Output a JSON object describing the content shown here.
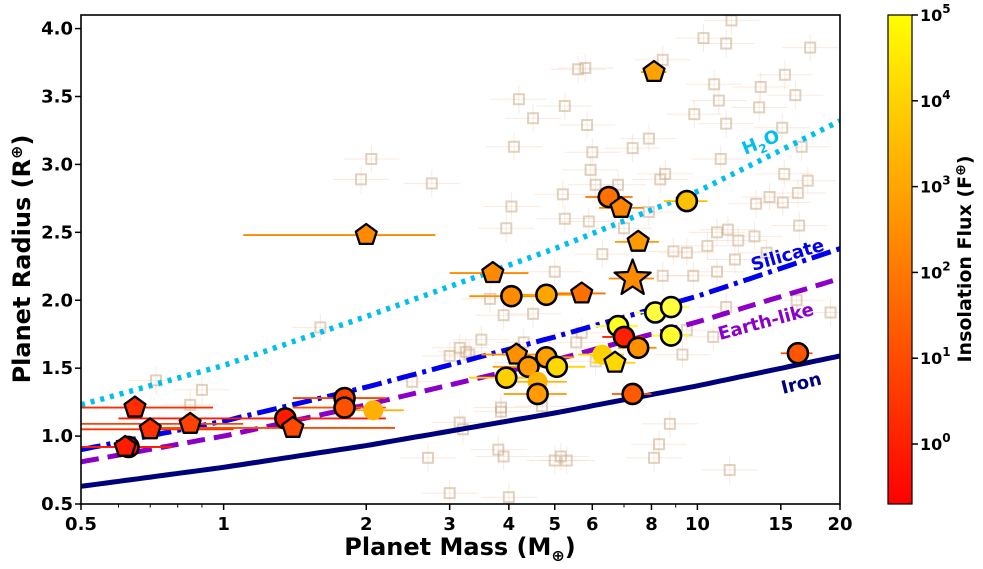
{
  "chart_data": {
    "type": "scatter",
    "xlabel": "Planet Mass (M",
    "xlabel_symbol": "⊕",
    "ylabel": "Planet Radius (R",
    "ylabel_symbol": "⊕",
    "x_scale": "log",
    "xlim": [
      0.5,
      20
    ],
    "ylim": [
      0.5,
      4.1
    ],
    "x_ticks": [
      0.5,
      1,
      2,
      3,
      4,
      5,
      6,
      8,
      10,
      15,
      20
    ],
    "x_tick_labels": [
      "0.5",
      "1",
      "2",
      "3",
      "4",
      "5",
      "6",
      "8",
      "10",
      "15",
      "20"
    ],
    "y_ticks": [
      0.5,
      1.0,
      1.5,
      2.0,
      2.5,
      3.0,
      3.5,
      4.0
    ],
    "y_tick_labels": [
      "0.5",
      "1.0",
      "1.5",
      "2.0",
      "2.5",
      "3.0",
      "3.5",
      "4.0"
    ],
    "grid": false,
    "colorbar": {
      "label": "Insolation Flux (F",
      "label_symbol": "⊕",
      "scale": "log",
      "range": [
        0.2,
        100000
      ],
      "colormap": "autumn (red to yellow)",
      "ticks": [
        {
          "base": "10",
          "exp": "0",
          "value": 1
        },
        {
          "base": "10",
          "exp": "1",
          "value": 10
        },
        {
          "base": "10",
          "exp": "2",
          "value": 100
        },
        {
          "base": "10",
          "exp": "3",
          "value": 1000
        },
        {
          "base": "10",
          "exp": "4",
          "value": 10000
        },
        {
          "base": "10",
          "exp": "5",
          "value": 100000
        }
      ]
    },
    "curves": [
      {
        "name": "H2O",
        "label_main": "H",
        "label_sub": "2",
        "label_end": "O",
        "color": "#00bfef",
        "style": "dotted",
        "points": [
          [
            0.5,
            1.23
          ],
          [
            1,
            1.52
          ],
          [
            2,
            1.88
          ],
          [
            5,
            2.38
          ],
          [
            10,
            2.8
          ],
          [
            20,
            3.32
          ]
        ]
      },
      {
        "name": "Silicate",
        "label": "Silicate",
        "color": "#0000ee",
        "style": "dashdot",
        "points": [
          [
            0.5,
            0.9
          ],
          [
            1,
            1.11
          ],
          [
            2,
            1.36
          ],
          [
            5,
            1.73
          ],
          [
            10,
            2.03
          ],
          [
            20,
            2.38
          ]
        ]
      },
      {
        "name": "Earth-like",
        "label": "Earth-like",
        "color": "#8a00c8",
        "style": "dashed",
        "points": [
          [
            0.5,
            0.81
          ],
          [
            1,
            1.0
          ],
          [
            2,
            1.23
          ],
          [
            5,
            1.56
          ],
          [
            10,
            1.84
          ],
          [
            20,
            2.16
          ]
        ]
      },
      {
        "name": "Iron",
        "label": "Iron",
        "color": "#00007a",
        "style": "solid",
        "points": [
          [
            0.5,
            0.63
          ],
          [
            1,
            0.77
          ],
          [
            2,
            0.93
          ],
          [
            5,
            1.17
          ],
          [
            10,
            1.37
          ],
          [
            20,
            1.59
          ]
        ]
      }
    ],
    "highlight": {
      "marker": "star",
      "x": 7.3,
      "y": 2.16,
      "color": "#ff8c00",
      "xerr": [
        6.5,
        8.1
      ]
    },
    "planets": [
      {
        "marker": "circle",
        "x": 0.63,
        "y": 0.92,
        "color": "#ff1500",
        "xerr": [
          0.5,
          0.75
        ]
      },
      {
        "marker": "pentagon",
        "x": 0.65,
        "y": 1.21,
        "color": "#ff2d00",
        "xerr": [
          0.5,
          0.95
        ]
      },
      {
        "marker": "pentagon",
        "x": 0.7,
        "y": 1.05,
        "color": "#ff3000",
        "xerr": [
          0.5,
          1.05
        ]
      },
      {
        "marker": "pentagon",
        "x": 0.85,
        "y": 1.09,
        "color": "#ff4200",
        "xerr": [
          0.5,
          1.1
        ]
      },
      {
        "marker": "pentagon",
        "x": 0.62,
        "y": 0.92,
        "color": "#ff1a00",
        "xerr": [
          0.5,
          0.78
        ]
      },
      {
        "marker": "circle",
        "x": 1.35,
        "y": 1.13,
        "color": "#ff1a00",
        "xerr": [
          0.6,
          2.2
        ]
      },
      {
        "marker": "pentagon",
        "x": 1.4,
        "y": 1.06,
        "color": "#ff4a00",
        "xerr": [
          0.7,
          2.3
        ]
      },
      {
        "marker": "pentagon",
        "x": 2.0,
        "y": 2.48,
        "color": "#ff8a00",
        "xerr": [
          1.1,
          2.8
        ]
      },
      {
        "marker": "circle",
        "x": 1.8,
        "y": 1.28,
        "color": "#ff4200",
        "xerr": [
          1.4,
          2.2
        ]
      },
      {
        "marker": "circle",
        "x": 1.8,
        "y": 1.21,
        "color": "#ff5000",
        "xerr": [
          1.4,
          2.2
        ]
      },
      {
        "marker": "circle",
        "x": 2.07,
        "y": 1.19,
        "color": "#ffb000",
        "xerr": [
          1.8,
          2.4
        ],
        "no_outline": true
      },
      {
        "marker": "pentagon",
        "x": 3.7,
        "y": 2.2,
        "color": "#ff8a00",
        "xerr": [
          3.0,
          4.4
        ]
      },
      {
        "marker": "circle",
        "x": 4.05,
        "y": 2.03,
        "color": "#ff8c00",
        "xerr": [
          3.3,
          4.9
        ]
      },
      {
        "marker": "circle",
        "x": 4.8,
        "y": 2.04,
        "color": "#ffa500",
        "xerr": [
          4.1,
          5.5
        ]
      },
      {
        "marker": "pentagon",
        "x": 5.7,
        "y": 2.05,
        "color": "#ff7000",
        "xerr": [
          5.0,
          6.4
        ]
      },
      {
        "marker": "pentagon",
        "x": 4.15,
        "y": 1.6,
        "color": "#ff9000",
        "xerr": [
          3.5,
          4.8
        ]
      },
      {
        "marker": "circle",
        "x": 3.95,
        "y": 1.43,
        "color": "#ffd000",
        "xerr": [
          3.3,
          4.6
        ]
      },
      {
        "marker": "circle",
        "x": 4.4,
        "y": 1.51,
        "color": "#ff9a00",
        "xerr": [
          3.7,
          5.1
        ]
      },
      {
        "marker": "circle",
        "x": 4.8,
        "y": 1.58,
        "color": "#ffa000",
        "xerr": [
          4.1,
          5.5
        ]
      },
      {
        "marker": "circle",
        "x": 5.05,
        "y": 1.51,
        "color": "#ffd800",
        "xerr": [
          4.3,
          5.8
        ]
      },
      {
        "marker": "circle",
        "x": 4.6,
        "y": 1.4,
        "color": "#ffb400",
        "xerr": [
          3.9,
          5.3
        ],
        "no_outline": true
      },
      {
        "marker": "circle",
        "x": 4.6,
        "y": 1.31,
        "color": "#ff9a00",
        "xerr": [
          3.9,
          5.3
        ]
      },
      {
        "marker": "circle",
        "x": 6.5,
        "y": 2.76,
        "color": "#ff7000",
        "xerr": [
          5.8,
          7.3
        ]
      },
      {
        "marker": "pentagon",
        "x": 6.9,
        "y": 2.68,
        "color": "#ff8500",
        "xerr": [
          6.2,
          7.7
        ]
      },
      {
        "marker": "pentagon",
        "x": 7.5,
        "y": 2.43,
        "color": "#ff9a00",
        "xerr": [
          6.7,
          8.3
        ]
      },
      {
        "marker": "pentagon",
        "x": 8.1,
        "y": 3.68,
        "color": "#ffa200",
        "xerr": [
          7.6,
          8.6
        ]
      },
      {
        "marker": "circle",
        "x": 9.5,
        "y": 2.73,
        "color": "#ffc000",
        "xerr": [
          8.5,
          10.5
        ]
      },
      {
        "marker": "circle",
        "x": 6.8,
        "y": 1.81,
        "color": "#ffff20",
        "xerr": [
          6.1,
          7.5
        ]
      },
      {
        "marker": "circle",
        "x": 7.0,
        "y": 1.73,
        "color": "#ff2000",
        "xerr": [
          6.3,
          7.7
        ]
      },
      {
        "marker": "circle",
        "x": 6.3,
        "y": 1.6,
        "color": "#ffd000",
        "xerr": [
          5.6,
          7.0
        ],
        "no_outline": true
      },
      {
        "marker": "pentagon",
        "x": 6.7,
        "y": 1.54,
        "color": "#ffd800",
        "xerr": [
          6.0,
          7.4
        ]
      },
      {
        "marker": "circle",
        "x": 7.5,
        "y": 1.65,
        "color": "#ff9000",
        "xerr": [
          6.8,
          8.2
        ]
      },
      {
        "marker": "circle",
        "x": 8.15,
        "y": 1.91,
        "color": "#ffff40",
        "xerr": [
          7.4,
          8.9
        ]
      },
      {
        "marker": "circle",
        "x": 8.8,
        "y": 1.95,
        "color": "#ffff40",
        "xerr": [
          8.0,
          9.6
        ]
      },
      {
        "marker": "circle",
        "x": 8.8,
        "y": 1.74,
        "color": "#ffff30",
        "xerr": [
          8.0,
          9.6
        ]
      },
      {
        "marker": "circle",
        "x": 7.3,
        "y": 1.31,
        "color": "#ff5a00",
        "xerr": [
          6.6,
          8.0
        ]
      },
      {
        "marker": "circle",
        "x": 16.3,
        "y": 1.61,
        "color": "#ff5500",
        "xerr": [
          15.0,
          17.5
        ]
      }
    ],
    "background_points": [
      [
        0.72,
        1.41
      ],
      [
        0.85,
        1.23
      ],
      [
        0.9,
        1.34
      ],
      [
        1.6,
        1.8
      ],
      [
        1.95,
        2.89
      ],
      [
        2.05,
        3.04
      ],
      [
        2.75,
        2.86
      ],
      [
        3.0,
        1.59
      ],
      [
        3.15,
        1.65
      ],
      [
        3.15,
        1.1
      ],
      [
        3.2,
        1.05
      ],
      [
        3.3,
        1.6
      ],
      [
        3.5,
        1.71
      ],
      [
        3.65,
        2.01
      ],
      [
        2.5,
        1.4
      ],
      [
        2.7,
        0.84
      ],
      [
        3.0,
        0.58
      ],
      [
        3.8,
        0.9
      ],
      [
        3.9,
        0.85
      ],
      [
        4.0,
        0.55
      ],
      [
        3.85,
        1.21
      ],
      [
        3.85,
        1.18
      ],
      [
        3.9,
        1.89
      ],
      [
        3.95,
        2.53
      ],
      [
        4.05,
        2.69
      ],
      [
        4.1,
        3.13
      ],
      [
        4.2,
        3.48
      ],
      [
        4.3,
        1.69
      ],
      [
        4.5,
        1.9
      ],
      [
        4.5,
        3.34
      ],
      [
        5.0,
        0.82
      ],
      [
        5.15,
        0.85
      ],
      [
        5.3,
        0.82
      ],
      [
        5.0,
        2.21
      ],
      [
        5.25,
        2.6
      ],
      [
        5.2,
        2.78
      ],
      [
        5.25,
        3.43
      ],
      [
        5.6,
        3.7
      ],
      [
        5.8,
        3.71
      ],
      [
        5.85,
        3.29
      ],
      [
        5.95,
        2.96
      ],
      [
        6.0,
        3.09
      ],
      [
        5.9,
        2.58
      ],
      [
        6.1,
        2.85
      ],
      [
        5.7,
        1.76
      ],
      [
        6.1,
        1.55
      ],
      [
        6.3,
        2.34
      ],
      [
        6.8,
        2.85
      ],
      [
        7.0,
        2.53
      ],
      [
        7.3,
        3.12
      ],
      [
        7.9,
        2.65
      ],
      [
        7.9,
        3.19
      ],
      [
        8.35,
        2.89
      ],
      [
        8.45,
        3.77
      ],
      [
        8.55,
        2.93
      ],
      [
        8.45,
        2.18
      ],
      [
        8.9,
        2.36
      ],
      [
        9.5,
        2.35
      ],
      [
        9.85,
        3.37
      ],
      [
        10.3,
        3.93
      ],
      [
        10.85,
        3.59
      ],
      [
        11.1,
        3.47
      ],
      [
        11.2,
        3.04
      ],
      [
        11.5,
        3.3
      ],
      [
        11.5,
        3.89
      ],
      [
        10.5,
        2.4
      ],
      [
        11.0,
        2.5
      ],
      [
        11.0,
        2.21
      ],
      [
        11.6,
        2.52
      ],
      [
        11.5,
        1.95
      ],
      [
        10.8,
        1.73
      ],
      [
        9.3,
        1.6
      ],
      [
        8.3,
        0.94
      ],
      [
        8.1,
        0.84
      ],
      [
        8.75,
        1.09
      ],
      [
        11.8,
        4.06
      ],
      [
        13.2,
        2.47
      ],
      [
        13.3,
        2.71
      ],
      [
        13.5,
        3.42
      ],
      [
        13.6,
        3.57
      ],
      [
        14.2,
        2.76
      ],
      [
        15.15,
        2.72
      ],
      [
        15.25,
        2.93
      ],
      [
        15.1,
        3.27
      ],
      [
        15.3,
        3.66
      ],
      [
        16.1,
        3.51
      ],
      [
        16.3,
        2.79
      ],
      [
        16.6,
        3.13
      ],
      [
        17.1,
        2.88
      ],
      [
        17.3,
        3.86
      ],
      [
        16.4,
        2.55
      ],
      [
        16.2,
        2.0
      ],
      [
        14.0,
        2.35
      ],
      [
        12.0,
        2.3
      ],
      [
        12.2,
        2.44
      ],
      [
        11.7,
        0.75
      ],
      [
        19.1,
        1.91
      ],
      [
        3.25,
        1.62
      ],
      [
        4.25,
        1.54
      ],
      [
        4.7,
        1.22
      ],
      [
        5.55,
        1.69
      ],
      [
        9.8,
        2.18
      ],
      [
        9.5,
        1.78
      ]
    ]
  }
}
